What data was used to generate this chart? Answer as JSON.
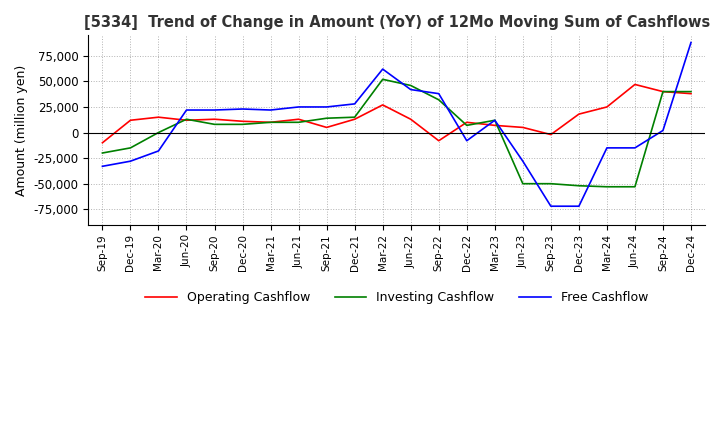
{
  "title": "[5334]  Trend of Change in Amount (YoY) of 12Mo Moving Sum of Cashflows",
  "ylabel": "Amount (million yen)",
  "ylim": [
    -90000,
    95000
  ],
  "yticks": [
    -75000,
    -50000,
    -25000,
    0,
    25000,
    50000,
    75000
  ],
  "legend_labels": [
    "Operating Cashflow",
    "Investing Cashflow",
    "Free Cashflow"
  ],
  "dates": [
    "Sep-19",
    "Dec-19",
    "Mar-20",
    "Jun-20",
    "Sep-20",
    "Dec-20",
    "Mar-21",
    "Jun-21",
    "Sep-21",
    "Dec-21",
    "Mar-22",
    "Jun-22",
    "Sep-22",
    "Dec-22",
    "Mar-23",
    "Jun-23",
    "Sep-23",
    "Dec-23",
    "Mar-24",
    "Jun-24",
    "Sep-24",
    "Dec-24"
  ],
  "operating": [
    -10000,
    12000,
    15000,
    12000,
    13000,
    11000,
    10000,
    13000,
    5000,
    13000,
    27000,
    13000,
    -8000,
    10000,
    7000,
    5000,
    -2000,
    18000,
    25000,
    47000,
    40000,
    38000
  ],
  "investing": [
    -20000,
    -15000,
    0,
    13000,
    8000,
    8000,
    10000,
    10000,
    14000,
    15000,
    52000,
    46000,
    32000,
    7000,
    12000,
    -50000,
    -50000,
    -52000,
    -53000,
    -53000,
    40000,
    40000
  ],
  "free": [
    -33000,
    -28000,
    -18000,
    22000,
    22000,
    23000,
    22000,
    25000,
    25000,
    28000,
    62000,
    42000,
    38000,
    -8000,
    12000,
    -28000,
    -72000,
    -72000,
    -15000,
    -15000,
    2000,
    88000
  ]
}
